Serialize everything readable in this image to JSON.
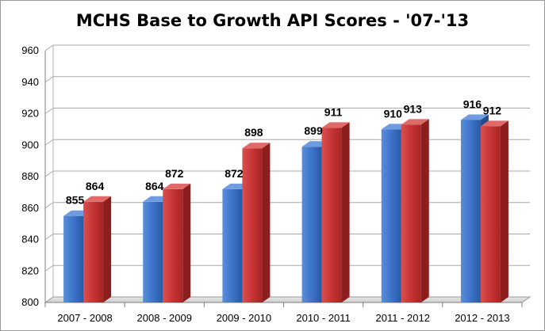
{
  "chart_data": {
    "type": "bar",
    "title": "MCHS Base to Growth API Scores - '07-'13",
    "xlabel": "",
    "ylabel": "",
    "ylim": [
      800,
      960
    ],
    "yticks": [
      "800",
      "820",
      "840",
      "860",
      "880",
      "900",
      "920",
      "940",
      "960"
    ],
    "categories": [
      "2007  -  2008",
      "2008  -  2009",
      "2009  -  2010",
      "2010  -  2011",
      "2011  -  2012",
      "2012  -  2013"
    ],
    "series": [
      {
        "values": [
          855,
          864,
          872,
          899,
          910,
          916
        ],
        "color": "#3a6fc4"
      },
      {
        "values": [
          864,
          872,
          898,
          911,
          913,
          912
        ],
        "color": "#c83232"
      }
    ],
    "grid": true,
    "legend": "none",
    "style": "3d-columns"
  }
}
